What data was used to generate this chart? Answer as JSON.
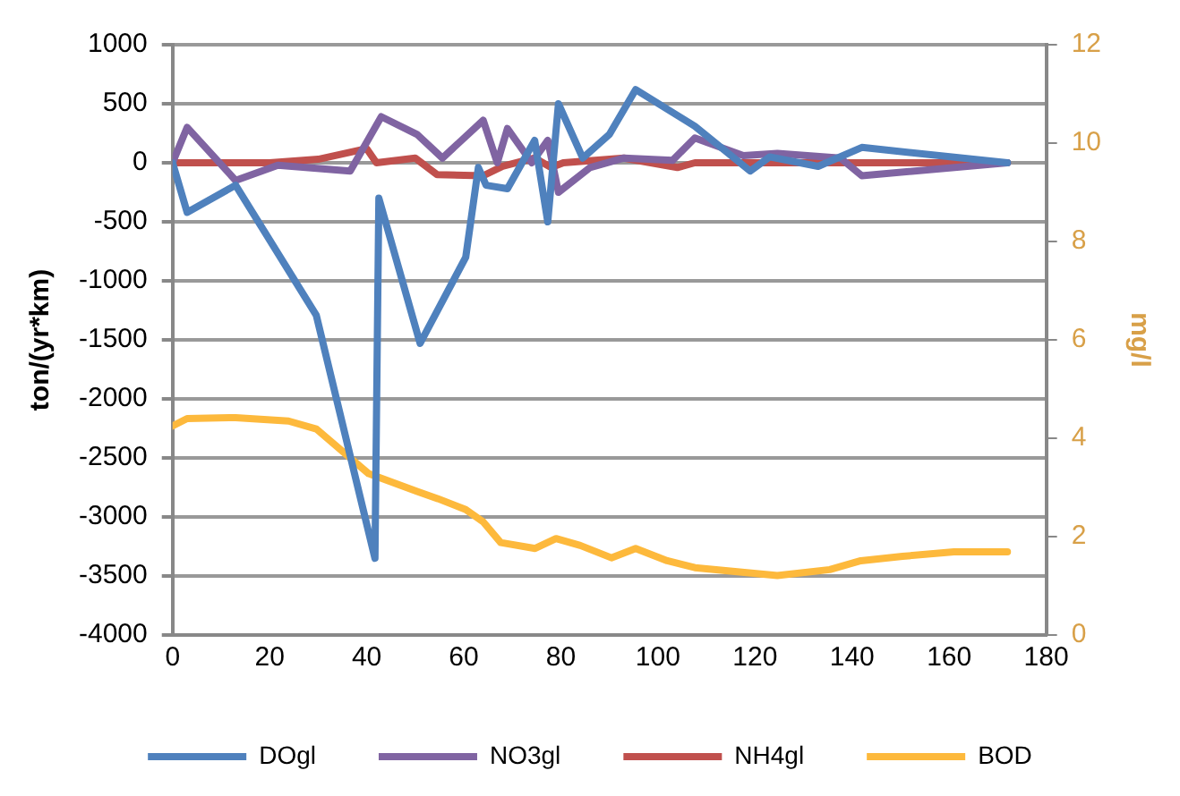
{
  "chart_data": {
    "type": "line",
    "ylabel": "ton/(yr*km)",
    "y2label": "mg/l",
    "xlim": [
      0,
      180
    ],
    "xticks": [
      0,
      20,
      40,
      60,
      80,
      100,
      120,
      140,
      160,
      180
    ],
    "ylim": [
      -4000,
      1000
    ],
    "yticks": [
      -4000,
      -3500,
      -3000,
      -2500,
      -2000,
      -1500,
      -1000,
      -500,
      0,
      500,
      1000
    ],
    "y2lim": [
      0,
      12
    ],
    "y2ticks": [
      0,
      2,
      4,
      6,
      8,
      10,
      12
    ],
    "grid": "y",
    "legend": "bottom",
    "marker": "none",
    "line_style": "solid",
    "series": [
      {
        "name": "DOgl",
        "color": "#4f81bd",
        "x": [
          0,
          3,
          13,
          29.6,
          41.7,
          42.5,
          51,
          60.4,
          63,
          64.6,
          69,
          74.6,
          77.3,
          79.5,
          84.5,
          90,
          95.4,
          107.6,
          119,
          123,
          133,
          142,
          172
        ],
        "values": [
          0,
          -420,
          -190,
          -1290,
          -3350,
          -300,
          -1530,
          -800,
          -40,
          -190,
          -220,
          190,
          -500,
          500,
          40,
          240,
          620,
          310,
          -70,
          50,
          -30,
          130,
          0
        ]
      },
      {
        "name": "NO3gl",
        "color": "#8064a2",
        "x": [
          0,
          3,
          13,
          21.7,
          36.6,
          43,
          50.4,
          55.6,
          64,
          66.9,
          69,
          74,
          77.3,
          79.5,
          86,
          93,
          103,
          107.6,
          117.6,
          124.6,
          137.6,
          142,
          172
        ],
        "values": [
          0,
          300,
          -150,
          -20,
          -70,
          390,
          240,
          40,
          360,
          0,
          290,
          0,
          190,
          -250,
          -40,
          40,
          20,
          210,
          60,
          80,
          40,
          -110,
          0
        ]
      },
      {
        "name": "NH4gl",
        "color": "#c0504d",
        "x": [
          0,
          20,
          30,
          40,
          42,
          50,
          54.5,
          64,
          68,
          74.6,
          78,
          80.5,
          93,
          104,
          107.6,
          140,
          172
        ],
        "values": [
          0,
          0,
          30,
          120,
          0,
          40,
          -100,
          -110,
          -30,
          40,
          -40,
          0,
          40,
          -40,
          0,
          0,
          0
        ]
      },
      {
        "name": "BOD",
        "color": "#fdb93c",
        "axis": "y2",
        "x": [
          0,
          3,
          13,
          23.9,
          29.6,
          40.4,
          50.4,
          54.7,
          60.4,
          64,
          67.6,
          74.7,
          79,
          84,
          90.4,
          95.4,
          101.9,
          107.6,
          124.6,
          135.4,
          141.8,
          150.4,
          161,
          172
        ],
        "values": [
          4.25,
          4.4,
          4.42,
          4.35,
          4.19,
          3.28,
          2.92,
          2.77,
          2.55,
          2.3,
          1.88,
          1.76,
          1.96,
          1.82,
          1.57,
          1.76,
          1.51,
          1.37,
          1.21,
          1.33,
          1.51,
          1.6,
          1.69,
          1.69
        ]
      }
    ]
  }
}
